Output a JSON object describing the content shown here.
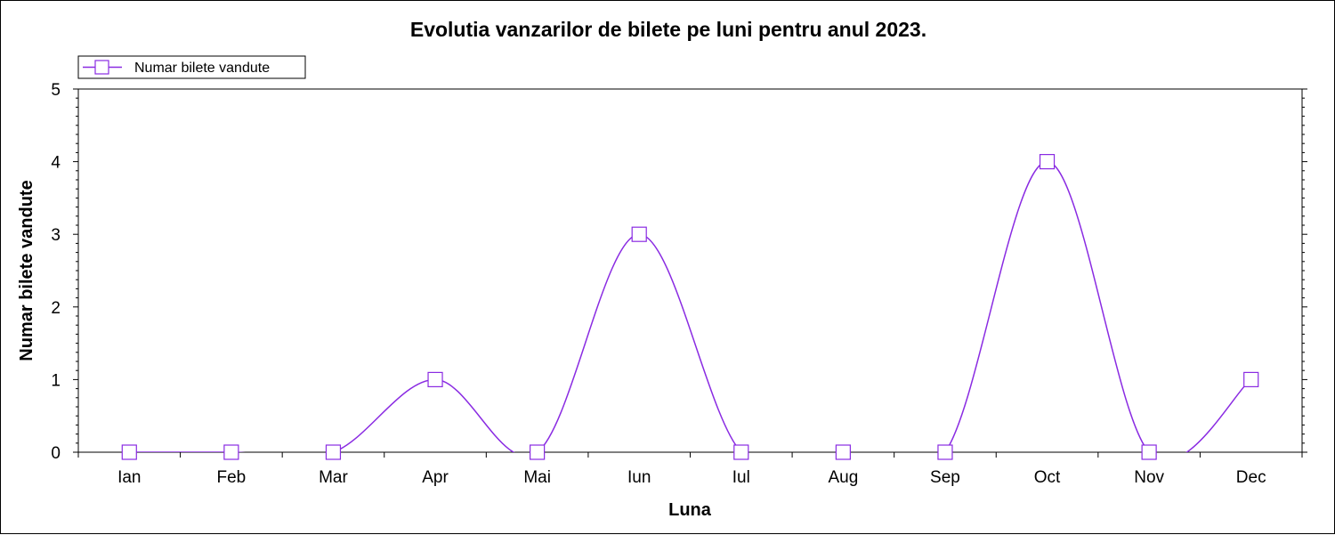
{
  "chart_data": {
    "type": "line",
    "title": "Evolutia vanzarilor de bilete pe luni pentru anul 2023.",
    "xlabel": "Luna",
    "ylabel": "Numar bilete vandute",
    "categories": [
      "Ian",
      "Feb",
      "Mar",
      "Apr",
      "Mai",
      "Iun",
      "Iul",
      "Aug",
      "Sep",
      "Oct",
      "Nov",
      "Dec"
    ],
    "ylim": [
      0,
      5
    ],
    "yticks": [
      0,
      1,
      2,
      3,
      4,
      5
    ],
    "series": [
      {
        "name": "Numar bilete vandute",
        "values": [
          0,
          0,
          0,
          1,
          0,
          3,
          0,
          0,
          0,
          4,
          0,
          1
        ],
        "color": "#8a2be2",
        "marker": "square",
        "smooth": true
      }
    ],
    "legend_position": "top-left",
    "grid": false
  }
}
